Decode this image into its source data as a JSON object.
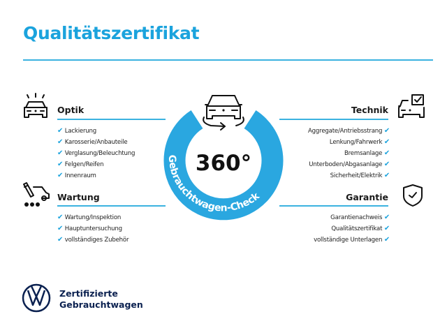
{
  "title": "Qualitätszertifikat",
  "colors": {
    "accent": "#1ba3dd",
    "ring": "#2aa7e0",
    "brand_navy": "#0b2150"
  },
  "center": {
    "degrees": "360°",
    "ring_text": "Gebrauchtwagen-Check",
    "icon": "car-rotate-icon"
  },
  "sections": {
    "optik": {
      "heading": "Optik",
      "icon": "car-lights-icon",
      "items": [
        "Lackierung",
        "Karosserie/Anbauteile",
        "Verglasung/Beleuchtung",
        "Felgen/Reifen",
        "Innenraum"
      ]
    },
    "wartung": {
      "heading": "Wartung",
      "icon": "service-tools-icon",
      "items": [
        "Wartung/Inspektion",
        "Hauptuntersuchung",
        "vollständiges Zubehör"
      ]
    },
    "technik": {
      "heading": "Technik",
      "icon": "car-checklist-icon",
      "items": [
        "Aggregate/Antriebsstrang",
        "Lenkung/Fahrwerk",
        "Bremsanlage",
        "Unterboden/Abgasanlage",
        "Sicherheit/Elektrik"
      ]
    },
    "garantie": {
      "heading": "Garantie",
      "icon": "shield-check-icon",
      "items": [
        "Garantienachweis",
        "Qualitätszertifikat",
        "vollständige Unterlagen"
      ]
    }
  },
  "check_glyph": "✔",
  "footer": {
    "logo": "VW",
    "line1": "Zertifizierte",
    "line2": "Gebrauchtwagen"
  }
}
